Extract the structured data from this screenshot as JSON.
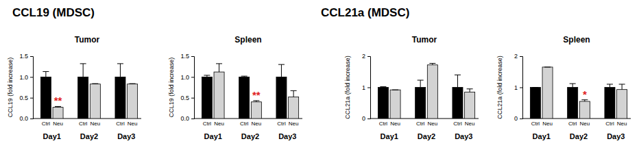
{
  "chart_data": [
    {
      "type": "bar",
      "suptitle": "CCL19  (MDSC)",
      "title": "Tumor",
      "y_label": "CCL19 (fold increase)",
      "categories": [
        "Day1",
        "Day2",
        "Day3"
      ],
      "series": [
        {
          "name": "Ctrl",
          "color": "#000000",
          "values": [
            1.0,
            1.0,
            1.0
          ],
          "errors": [
            0.13,
            0.32,
            0.32
          ],
          "significance": [
            null,
            null,
            null
          ]
        },
        {
          "name": "Neu",
          "color": "#d3d3d3",
          "values": [
            0.27,
            0.83,
            0.83
          ],
          "errors": [
            0.02,
            0.01,
            0.01
          ],
          "significance": [
            "**",
            null,
            null
          ]
        }
      ],
      "ylim": [
        0,
        1.5
      ],
      "yticks": [
        {
          "value": 0,
          "label": "0.0"
        },
        {
          "value": 0.5,
          "label": "0.5"
        },
        {
          "value": 1,
          "label": "1.0"
        },
        {
          "value": 1.5,
          "label": "1.5"
        }
      ]
    },
    {
      "type": "bar",
      "title": "Spleen",
      "y_label": "CCL19 (fold increase)",
      "categories": [
        "Day1",
        "Day2",
        "Day3"
      ],
      "series": [
        {
          "name": "Ctrl",
          "color": "#000000",
          "values": [
            1.0,
            1.0,
            1.0
          ],
          "errors": [
            0.04,
            0.02,
            0.3
          ],
          "significance": [
            null,
            null,
            null
          ]
        },
        {
          "name": "Neu",
          "color": "#d3d3d3",
          "values": [
            1.12,
            0.4,
            0.52
          ],
          "errors": [
            0.2,
            0.03,
            0.15
          ],
          "significance": [
            null,
            "**",
            null
          ]
        }
      ],
      "ylim": [
        0,
        1.5
      ],
      "yticks": [
        {
          "value": 0,
          "label": "0.0"
        },
        {
          "value": 0.5,
          "label": "0.5"
        },
        {
          "value": 1,
          "label": "1.0"
        },
        {
          "value": 1.5,
          "label": "1.5"
        }
      ]
    },
    {
      "type": "bar",
      "suptitle": "CCL21a (MDSC)",
      "title": "Tumor",
      "y_label": "CCL21a (fold increase)",
      "categories": [
        "Day1",
        "Day2",
        "Day3"
      ],
      "series": [
        {
          "name": "Ctrl",
          "color": "#000000",
          "values": [
            1.0,
            1.0,
            1.0
          ],
          "errors": [
            0.02,
            0.23,
            0.4
          ],
          "significance": [
            null,
            null,
            null
          ]
        },
        {
          "name": "Neu",
          "color": "#d3d3d3",
          "values": [
            0.92,
            1.72,
            0.85
          ],
          "errors": [
            0.0,
            0.05,
            0.1
          ],
          "significance": [
            null,
            null,
            null
          ]
        }
      ],
      "ylim": [
        0,
        2
      ],
      "yticks": [
        0,
        1,
        2
      ]
    },
    {
      "type": "bar",
      "title": "Spleen",
      "y_label": "CCL21a (fold increase)",
      "categories": [
        "Day1",
        "Day2",
        "Day3"
      ],
      "series": [
        {
          "name": "Ctrl",
          "color": "#000000",
          "values": [
            1.0,
            1.0,
            1.0
          ],
          "errors": [
            0.0,
            0.12,
            0.1
          ],
          "significance": [
            null,
            null,
            null
          ]
        },
        {
          "name": "Neu",
          "color": "#d3d3d3",
          "values": [
            1.65,
            0.55,
            0.93
          ],
          "errors": [
            0.0,
            0.05,
            0.17
          ],
          "significance": [
            null,
            "*",
            null
          ]
        }
      ],
      "ylim": [
        0,
        2
      ],
      "yticks": [
        0,
        1,
        2
      ]
    }
  ]
}
